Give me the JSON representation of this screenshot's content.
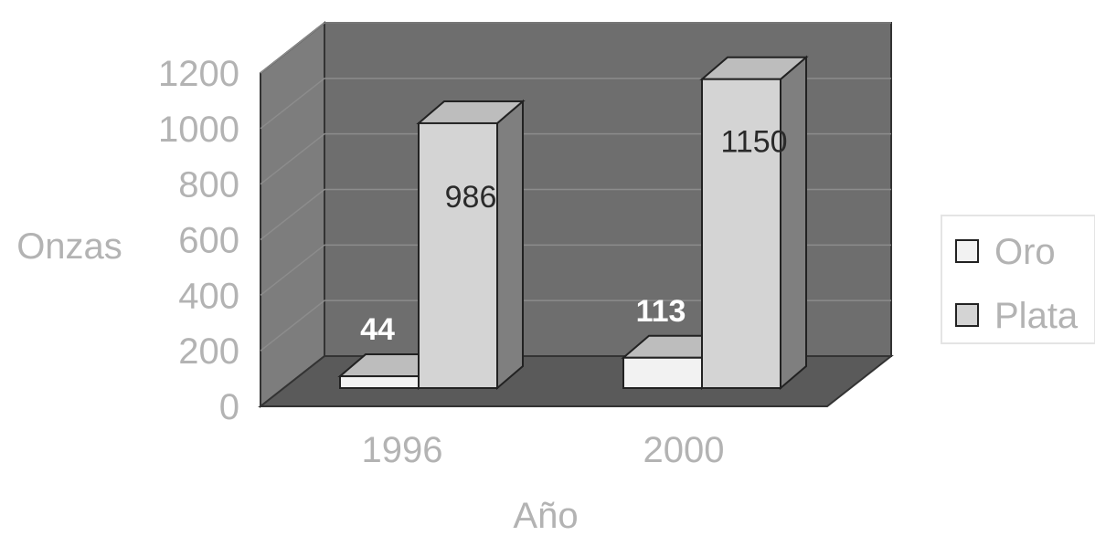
{
  "chart_data": {
    "type": "bar",
    "title": "",
    "xlabel": "Año",
    "ylabel": "Onzas",
    "categories": [
      "1996",
      "2000"
    ],
    "series": [
      {
        "name": "Oro",
        "values": [
          44,
          113
        ]
      },
      {
        "name": "Plata",
        "values": [
          986,
          1150
        ]
      }
    ],
    "data_labels": [
      [
        "44",
        "113"
      ],
      [
        "986",
        "1150"
      ]
    ],
    "y_ticks": [
      "0",
      "200",
      "400",
      "600",
      "800",
      "1000",
      "1200"
    ],
    "ylim": [
      0,
      1200
    ],
    "grid": true,
    "style": "3d-clustered-column",
    "legend_position": "right",
    "colors": {
      "oro": "#f2f2f2",
      "plata": "#d4d4d4",
      "back_wall": "#6e6e6e",
      "side_wall": "#7d7d7d",
      "floor": "#5a5a5a",
      "gridline": "#8c8c8c"
    }
  }
}
